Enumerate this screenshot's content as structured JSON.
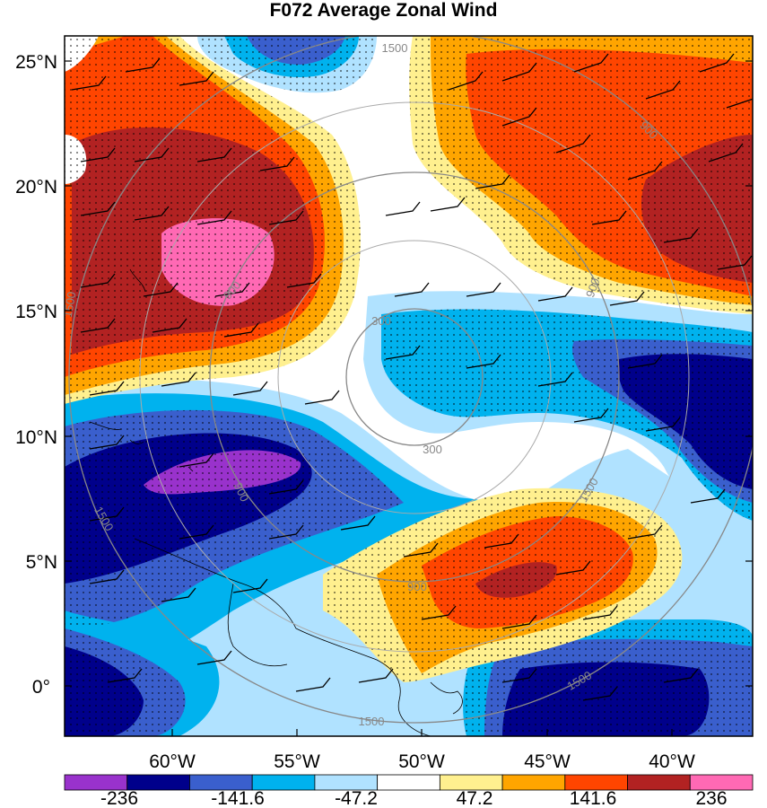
{
  "map": {
    "title": "F072 Average Zonal Wind",
    "lat_labels": [
      "25°N",
      "20°N",
      "15°N",
      "10°N",
      "5°N",
      "0°"
    ],
    "lon_labels": [
      "60°W",
      "55°W",
      "50°W",
      "45°W",
      "40°W"
    ],
    "range_ring_labels": [
      {
        "text": "1500"
      },
      {
        "text": "900"
      },
      {
        "text": "900"
      },
      {
        "text": "1500"
      },
      {
        "text": "300"
      },
      {
        "text": "300"
      },
      {
        "text": "900"
      },
      {
        "text": "900"
      },
      {
        "text": "900"
      },
      {
        "text": "1500"
      },
      {
        "text": "1500"
      },
      {
        "text": "1500"
      },
      {
        "text": "1500"
      }
    ]
  },
  "colorbar": {
    "labels": [
      "-236",
      "-141.6",
      "-47.2",
      "47.2",
      "141.6",
      "236"
    ],
    "colors": [
      "#9932cc",
      "#00008b",
      "#3a5fcd",
      "#00b2ee",
      "#b0e2ff",
      "#ffffff",
      "#fff08f",
      "#ffa500",
      "#ff4500",
      "#b22222",
      "#ff69b4"
    ]
  }
}
